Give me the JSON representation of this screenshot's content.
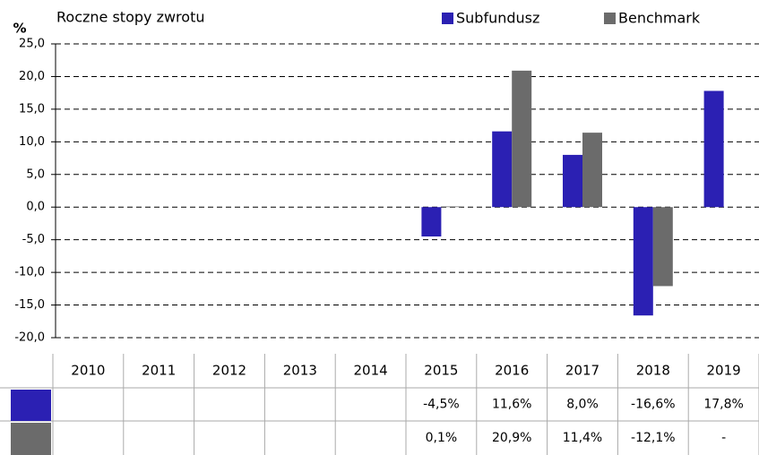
{
  "chart_data": {
    "type": "bar",
    "title": "Roczne stopy zwrotu",
    "y_label": "%",
    "categories": [
      "2010",
      "2011",
      "2012",
      "2013",
      "2014",
      "2015",
      "2016",
      "2017",
      "2018",
      "2019"
    ],
    "series": [
      {
        "name": "Subfundusz",
        "color": "#2b20b3",
        "values": [
          null,
          null,
          null,
          null,
          null,
          -4.5,
          11.6,
          8.0,
          -16.6,
          17.8
        ],
        "value_labels": [
          null,
          null,
          null,
          null,
          null,
          "-4,5%",
          "11,6%",
          "8,0%",
          "-16,6%",
          "17,8%"
        ]
      },
      {
        "name": "Benchmark",
        "color": "#6b6b6b",
        "values": [
          null,
          null,
          null,
          null,
          null,
          0.1,
          20.9,
          11.4,
          -12.1,
          null
        ],
        "value_labels": [
          null,
          null,
          null,
          null,
          null,
          "0,1%",
          "20,9%",
          "11,4%",
          "-12,1%",
          "-"
        ]
      }
    ],
    "ylim": [
      -20,
      25
    ],
    "yticks": [
      {
        "value": -20,
        "label": "-20,0"
      },
      {
        "value": -15,
        "label": "-15,0"
      },
      {
        "value": -10,
        "label": "-10,0"
      },
      {
        "value": -5,
        "label": "-5,0"
      },
      {
        "value": 0,
        "label": "0,0"
      },
      {
        "value": 5,
        "label": "5,0"
      },
      {
        "value": 10,
        "label": "10,0"
      },
      {
        "value": 15,
        "label": "15,0"
      },
      {
        "value": 20,
        "label": "20,0"
      },
      {
        "value": 25,
        "label": "25,0"
      }
    ],
    "grid": true
  }
}
